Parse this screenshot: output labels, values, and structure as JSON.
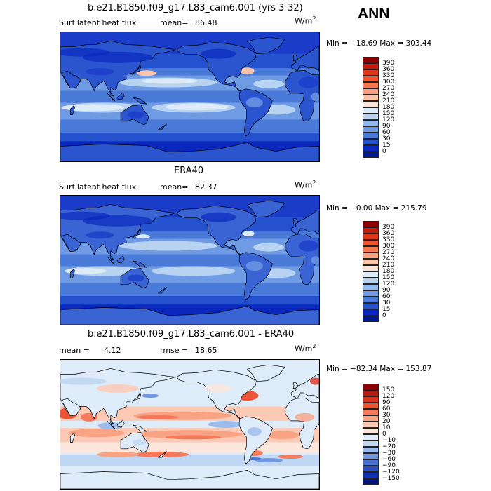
{
  "season": "ANN",
  "panels": [
    {
      "title": "b.e21.B1850.f09_g17.L83_cam6.001 (yrs 3-32)",
      "variable": "Surf latent heat flux",
      "mean_label": "mean=",
      "mean_value": "86.48",
      "units": "W/m",
      "units_exp": "2",
      "minmax": "Min = −18.69 Max = 303.44",
      "map_style": "model",
      "colorbar": {
        "levels": [
          "390",
          "360",
          "330",
          "300",
          "270",
          "240",
          "210",
          "180",
          "150",
          "120",
          "90",
          "60",
          "30",
          "15",
          "0"
        ],
        "colors": [
          "#8b0000",
          "#c21a0c",
          "#e0361c",
          "#f0552e",
          "#f57a52",
          "#f8a080",
          "#fbc4aa",
          "#fce4d6",
          "#ddeaf7",
          "#b8d3f2",
          "#94b8ec",
          "#6f9ae4",
          "#4a7ad8",
          "#2451cd",
          "#0a28be",
          "#001a8f"
        ]
      },
      "chart_data": {
        "type": "heatmap",
        "title": "b.e21.B1850.f09_g17.L83_cam6.001 (yrs 3-32)",
        "subtitle": "Surf latent heat flux",
        "mean": 86.48,
        "min": -18.69,
        "max": 303.44,
        "units": "W/m2",
        "levels": [
          0,
          15,
          30,
          60,
          90,
          120,
          150,
          180,
          210,
          240,
          270,
          300,
          330,
          360,
          390
        ]
      }
    },
    {
      "title": "ERA40",
      "variable": "Surf latent heat flux",
      "mean_label": "mean=",
      "mean_value": "82.37",
      "units": "W/m",
      "units_exp": "2",
      "minmax": "Min =  −0.00 Max = 215.79",
      "map_style": "obs",
      "colorbar": {
        "levels": [
          "390",
          "360",
          "330",
          "300",
          "270",
          "240",
          "210",
          "180",
          "150",
          "120",
          "90",
          "60",
          "30",
          "15",
          "0"
        ],
        "colors": [
          "#8b0000",
          "#c21a0c",
          "#e0361c",
          "#f0552e",
          "#f57a52",
          "#f8a080",
          "#fbc4aa",
          "#fce4d6",
          "#ddeaf7",
          "#b8d3f2",
          "#94b8ec",
          "#6f9ae4",
          "#4a7ad8",
          "#2451cd",
          "#0a28be",
          "#001a8f"
        ]
      },
      "chart_data": {
        "type": "heatmap",
        "title": "ERA40",
        "subtitle": "Surf latent heat flux",
        "mean": 82.37,
        "min": -0.0,
        "max": 215.79,
        "units": "W/m2",
        "levels": [
          0,
          15,
          30,
          60,
          90,
          120,
          150,
          180,
          210,
          240,
          270,
          300,
          330,
          360,
          390
        ]
      }
    },
    {
      "title": "b.e21.B1850.f09_g17.L83_cam6.001 - ERA40",
      "variable": "mean =",
      "mean_label": "",
      "mean_value": "4.12",
      "rmse_label": "rmse =",
      "rmse_value": "18.65",
      "units": "W/m",
      "units_exp": "2",
      "minmax": "Min = −82.34 Max = 153.87",
      "map_style": "diff",
      "colorbar": {
        "levels": [
          "150",
          "120",
          "90",
          "60",
          "30",
          "20",
          "10",
          "0",
          "−10",
          "−20",
          "−30",
          "−60",
          "−90",
          "−120",
          "−150"
        ],
        "colors": [
          "#8b0000",
          "#b81a10",
          "#d83420",
          "#ec5436",
          "#f5795a",
          "#f9a385",
          "#fcc9b4",
          "#fde6dc",
          "#deebf8",
          "#bfd7f3",
          "#9bbcec",
          "#7299e0",
          "#4a72d2",
          "#2a4ec4",
          "#1230a8",
          "#04157a"
        ]
      },
      "chart_data": {
        "type": "heatmap",
        "title": "b.e21.B1850.f09_g17.L83_cam6.001 - ERA40",
        "mean": 4.12,
        "rmse": 18.65,
        "min": -82.34,
        "max": 153.87,
        "units": "W/m2",
        "levels": [
          -150,
          -120,
          -90,
          -60,
          -30,
          -20,
          -10,
          0,
          10,
          20,
          30,
          60,
          90,
          120,
          150
        ]
      }
    }
  ]
}
